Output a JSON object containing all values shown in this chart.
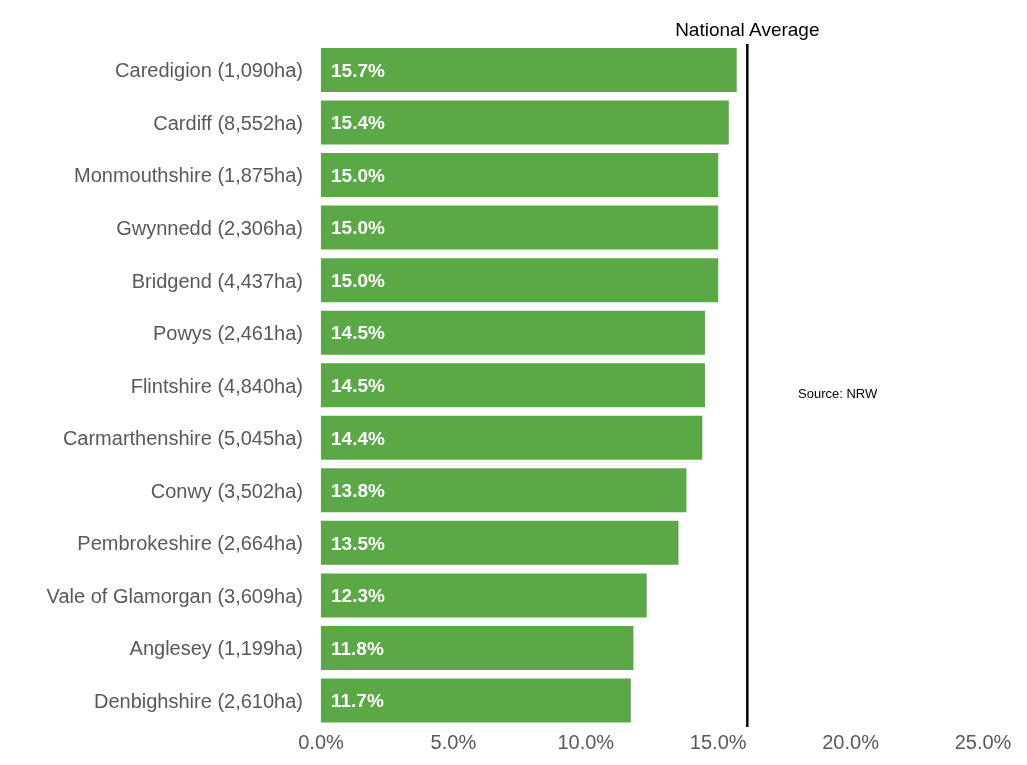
{
  "chart_data": {
    "type": "bar",
    "orientation": "horizontal",
    "categories": [
      "Caredigion (1,090ha)",
      "Cardiff (8,552ha)",
      "Monmouthshire (1,875ha)",
      "Gwynnedd (2,306ha)",
      "Bridgend (4,437ha)",
      "Powys (2,461ha)",
      "Flintshire (4,840ha)",
      "Carmarthenshire (5,045ha)",
      "Conwy (3,502ha)",
      "Pembrokeshire (2,664ha)",
      "Vale of Glamorgan (3,609ha)",
      "Anglesey (1,199ha)",
      "Denbighshire (2,610ha)"
    ],
    "values": [
      15.7,
      15.4,
      15.0,
      15.0,
      15.0,
      14.5,
      14.5,
      14.4,
      13.8,
      13.5,
      12.3,
      11.8,
      11.7
    ],
    "value_labels": [
      "15.7%",
      "15.4%",
      "15.0%",
      "15.0%",
      "15.0%",
      "14.5%",
      "14.5%",
      "14.4%",
      "13.8%",
      "13.5%",
      "12.3%",
      "11.8%",
      "11.7%"
    ],
    "color": "#5aa846",
    "xlim": [
      0,
      25
    ],
    "xticks": [
      {
        "value": 0,
        "label": "0.0%"
      },
      {
        "value": 5,
        "label": "5.0%"
      },
      {
        "value": 10,
        "label": "10.0%"
      },
      {
        "value": 15,
        "label": "15.0%"
      },
      {
        "value": 20,
        "label": "20.0%"
      },
      {
        "value": 25,
        "label": "25.0%"
      }
    ],
    "ref_lines": [
      {
        "axis": "x",
        "value": 16.1,
        "label": "National  Average",
        "color": "#000000"
      }
    ],
    "annotations": [
      "Source: NRW"
    ],
    "grid": false
  }
}
